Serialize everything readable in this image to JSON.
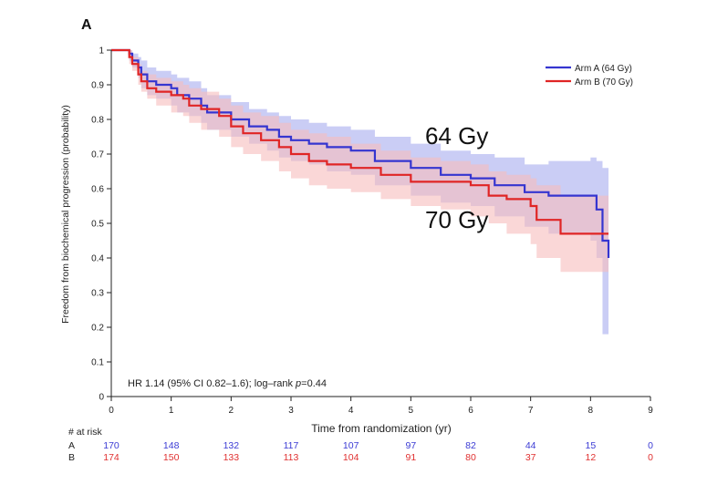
{
  "panel_label": "A",
  "annotations": {
    "arm_a_dose": "64 Gy",
    "arm_b_dose": "70 Gy",
    "stats_prefix": "HR 1.14  (95% CI  0.82–1.6);  log–rank ",
    "stats_p": "p",
    "stats_suffix": "=0.44"
  },
  "risk_table": {
    "header": "# at risk",
    "rows": [
      {
        "label": "A",
        "color": "#3b3bd4",
        "values": [
          "170",
          "148",
          "132",
          "117",
          "107",
          "97",
          "82",
          "44",
          "15",
          "0"
        ]
      },
      {
        "label": "B",
        "color": "#e03030",
        "values": [
          "174",
          "150",
          "133",
          "113",
          "104",
          "91",
          "80",
          "37",
          "12",
          "0"
        ]
      }
    ]
  },
  "chart_data": {
    "type": "line",
    "title": "",
    "xlabel": "Time from randomization (yr)",
    "ylabel": "Freedom from biochemical progression (probability)",
    "xlim": [
      0,
      9
    ],
    "ylim": [
      0,
      1
    ],
    "x_ticks": [
      0,
      1,
      2,
      3,
      4,
      5,
      6,
      7,
      8,
      9
    ],
    "y_ticks": [
      0,
      0.1,
      0.2,
      0.3,
      0.4,
      0.5,
      0.6,
      0.7,
      0.8,
      0.9,
      1
    ],
    "y_tick_labels": [
      "0",
      "0.1",
      "0.2",
      "0.3",
      "0.4",
      "0.5",
      "0.6",
      "0.7",
      "0.8",
      "0.9",
      "1"
    ],
    "grid": false,
    "legend_position": "top-right",
    "series": [
      {
        "name": "Arm A (64 Gy)",
        "color": "#3535d0",
        "band_color": "#b8bcf2",
        "x": [
          0,
          0.3,
          0.35,
          0.45,
          0.5,
          0.6,
          0.75,
          1.0,
          1.1,
          1.3,
          1.5,
          1.6,
          2.0,
          2.3,
          2.6,
          2.8,
          3.0,
          3.3,
          3.6,
          4.0,
          4.4,
          5.0,
          5.5,
          6.0,
          6.4,
          6.9,
          7.3,
          8.0,
          8.1,
          8.2,
          8.3
        ],
        "y": [
          1.0,
          0.99,
          0.97,
          0.95,
          0.93,
          0.91,
          0.9,
          0.89,
          0.87,
          0.86,
          0.84,
          0.82,
          0.8,
          0.78,
          0.77,
          0.75,
          0.74,
          0.73,
          0.72,
          0.71,
          0.68,
          0.66,
          0.64,
          0.63,
          0.61,
          0.59,
          0.58,
          0.58,
          0.54,
          0.45,
          0.4
        ],
        "ci_lower": [
          1.0,
          0.97,
          0.95,
          0.92,
          0.89,
          0.87,
          0.86,
          0.84,
          0.82,
          0.81,
          0.79,
          0.77,
          0.75,
          0.73,
          0.71,
          0.69,
          0.68,
          0.67,
          0.65,
          0.64,
          0.61,
          0.58,
          0.56,
          0.55,
          0.52,
          0.49,
          0.47,
          0.45,
          0.4,
          0.18,
          0.17
        ],
        "ci_upper": [
          1.0,
          1.0,
          0.99,
          0.98,
          0.97,
          0.95,
          0.94,
          0.93,
          0.92,
          0.91,
          0.89,
          0.87,
          0.85,
          0.83,
          0.82,
          0.81,
          0.8,
          0.79,
          0.78,
          0.77,
          0.75,
          0.73,
          0.71,
          0.7,
          0.69,
          0.67,
          0.68,
          0.69,
          0.68,
          0.66,
          0.64
        ]
      },
      {
        "name": "Arm B (70 Gy)",
        "color": "#e02525",
        "band_color": "#f7bcbc",
        "x": [
          0,
          0.3,
          0.35,
          0.45,
          0.5,
          0.6,
          0.75,
          1.0,
          1.2,
          1.3,
          1.5,
          1.8,
          2.0,
          2.2,
          2.5,
          2.8,
          3.0,
          3.3,
          3.6,
          4.0,
          4.5,
          5.0,
          5.5,
          6.0,
          6.3,
          6.6,
          7.0,
          7.1,
          7.5,
          8.0,
          8.3
        ],
        "y": [
          1.0,
          0.98,
          0.96,
          0.93,
          0.91,
          0.89,
          0.88,
          0.87,
          0.86,
          0.84,
          0.83,
          0.81,
          0.78,
          0.76,
          0.74,
          0.72,
          0.7,
          0.68,
          0.67,
          0.66,
          0.64,
          0.62,
          0.62,
          0.61,
          0.58,
          0.57,
          0.55,
          0.51,
          0.47,
          0.47,
          0.47
        ],
        "ci_lower": [
          1.0,
          0.96,
          0.94,
          0.9,
          0.88,
          0.86,
          0.84,
          0.82,
          0.81,
          0.79,
          0.77,
          0.75,
          0.72,
          0.7,
          0.68,
          0.65,
          0.63,
          0.61,
          0.6,
          0.59,
          0.57,
          0.55,
          0.54,
          0.52,
          0.5,
          0.47,
          0.44,
          0.4,
          0.36,
          0.36,
          0.36
        ],
        "ci_upper": [
          1.0,
          1.0,
          0.98,
          0.96,
          0.94,
          0.93,
          0.92,
          0.91,
          0.9,
          0.89,
          0.88,
          0.86,
          0.84,
          0.82,
          0.81,
          0.79,
          0.77,
          0.76,
          0.75,
          0.73,
          0.71,
          0.69,
          0.68,
          0.67,
          0.65,
          0.64,
          0.63,
          0.61,
          0.58,
          0.58,
          0.58
        ]
      }
    ]
  }
}
